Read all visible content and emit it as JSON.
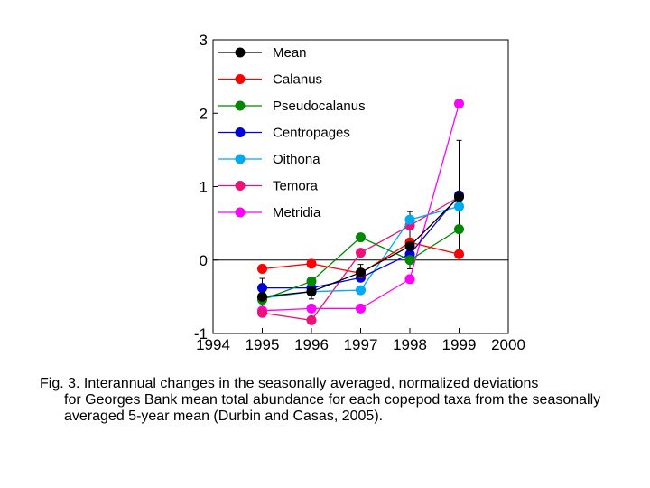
{
  "chart_data": {
    "type": "line",
    "xlim": [
      1994,
      2000
    ],
    "ylim": [
      -1,
      3
    ],
    "x_ticks": [
      1994,
      1995,
      1996,
      1997,
      1998,
      1999,
      2000
    ],
    "y_ticks": [
      -1,
      0,
      1,
      2,
      3
    ],
    "x_tick_labels": [
      "1994",
      "1995",
      "1996",
      "1997",
      "1998",
      "1999",
      "2000"
    ],
    "y_tick_labels": [
      "-1",
      "0",
      "1",
      "2",
      "3"
    ],
    "x": [
      1995,
      1996,
      1997,
      1998,
      1999
    ],
    "zero_line": true,
    "legend_position": "top-left",
    "series": [
      {
        "name": "Mean",
        "color": "#000000",
        "values": [
          -0.5,
          -0.43,
          -0.17,
          0.19,
          0.86
        ],
        "error_low": [
          -0.75,
          -0.53,
          -0.28,
          -0.12,
          0.1
        ],
        "error_high": [
          -0.25,
          -0.33,
          -0.06,
          0.66,
          1.63
        ]
      },
      {
        "name": "Calanus",
        "color": "#ff0000",
        "values": [
          -0.12,
          -0.05,
          -0.18,
          0.24,
          0.08
        ]
      },
      {
        "name": "Pseudocalanus",
        "color": "#008800",
        "values": [
          -0.54,
          -0.29,
          0.31,
          0.0,
          0.42
        ]
      },
      {
        "name": "Centropages",
        "color": "#0000dd",
        "values": [
          -0.38,
          -0.38,
          -0.24,
          0.08,
          0.88
        ]
      },
      {
        "name": "Oithona",
        "color": "#00aaee",
        "values": [
          -0.52,
          -0.43,
          -0.41,
          0.55,
          0.73
        ]
      },
      {
        "name": "Temora",
        "color": "#ee1177",
        "values": [
          -0.72,
          -0.82,
          0.1,
          0.47,
          0.86
        ]
      },
      {
        "name": "Metridia",
        "color": "#ff00ff",
        "values": [
          -0.69,
          -0.66,
          -0.66,
          -0.26,
          2.13
        ]
      }
    ]
  },
  "caption": {
    "first_line": "Fig. 3. Interannual changes in the seasonally averaged, normalized deviations",
    "rest": "for Georges Bank mean total abundance for each copepod taxa from the seasonally averaged 5-year mean (Durbin and Casas, 2005)."
  }
}
